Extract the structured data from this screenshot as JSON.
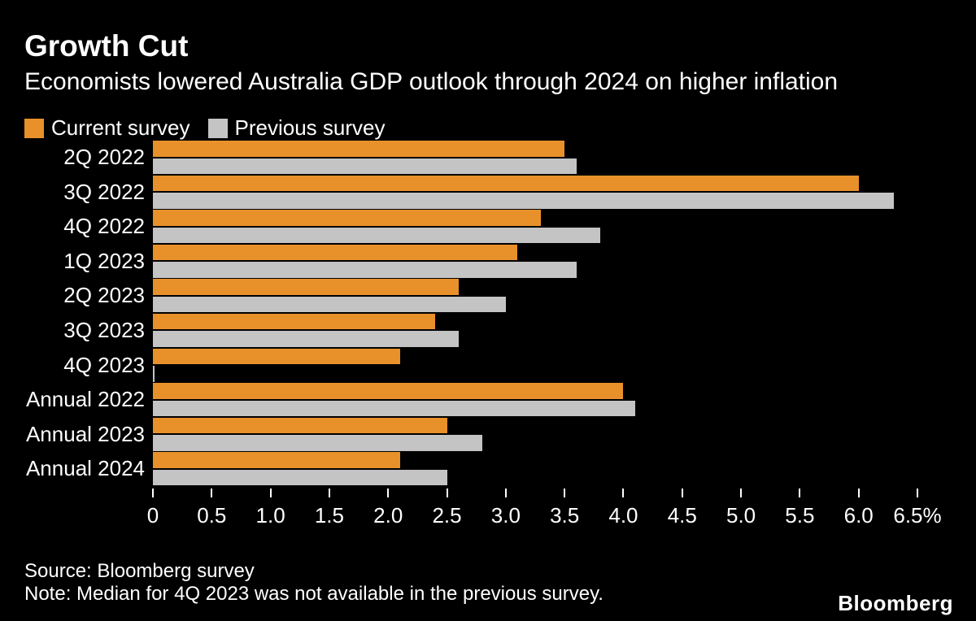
{
  "chart": {
    "title": "Growth Cut",
    "subtitle": "Economists lowered Australia GDP outlook through 2024 on higher inflation"
  },
  "chart_data": {
    "type": "bar",
    "orientation": "horizontal",
    "title": "Growth Cut",
    "subtitle": "Economists lowered Australia GDP outlook through 2024 on higher inflation",
    "categories": [
      "2Q 2022",
      "3Q 2022",
      "4Q 2022",
      "1Q 2023",
      "2Q 2023",
      "3Q 2023",
      "4Q 2023",
      "Annual 2022",
      "Annual 2023",
      "Annual 2024"
    ],
    "series": [
      {
        "name": "Current survey",
        "color": "#E8912B",
        "values": [
          3.5,
          6.0,
          3.3,
          3.1,
          2.6,
          2.4,
          2.1,
          4.0,
          2.5,
          2.1
        ]
      },
      {
        "name": "Previous survey",
        "color": "#C4C4C4",
        "values": [
          3.6,
          6.3,
          3.8,
          3.6,
          3.0,
          2.6,
          null,
          4.1,
          2.8,
          2.5
        ]
      }
    ],
    "xlim": [
      0,
      6.5
    ],
    "x_ticks": [
      0,
      0.5,
      1,
      1.5,
      2,
      2.5,
      3,
      3.5,
      4,
      4.5,
      5,
      5.5,
      6,
      6.5
    ],
    "x_tick_labels": [
      "0",
      "0.5",
      "1.0",
      "1.5",
      "2.0",
      "2.5",
      "3.0",
      "3.5",
      "4.0",
      "4.5",
      "5.0",
      "5.5",
      "6.0",
      "6.5%"
    ],
    "unit": "%",
    "legend_position": "top",
    "grid": false
  },
  "footer": {
    "source": "Source: Bloomberg survey",
    "note": "Note: Median for 4Q 2023 was not available in the previous survey.",
    "logo": "Bloomberg"
  },
  "colors": {
    "background": "#000000",
    "text": "#FFFFFF",
    "current": "#E8912B",
    "previous": "#C4C4C4"
  }
}
